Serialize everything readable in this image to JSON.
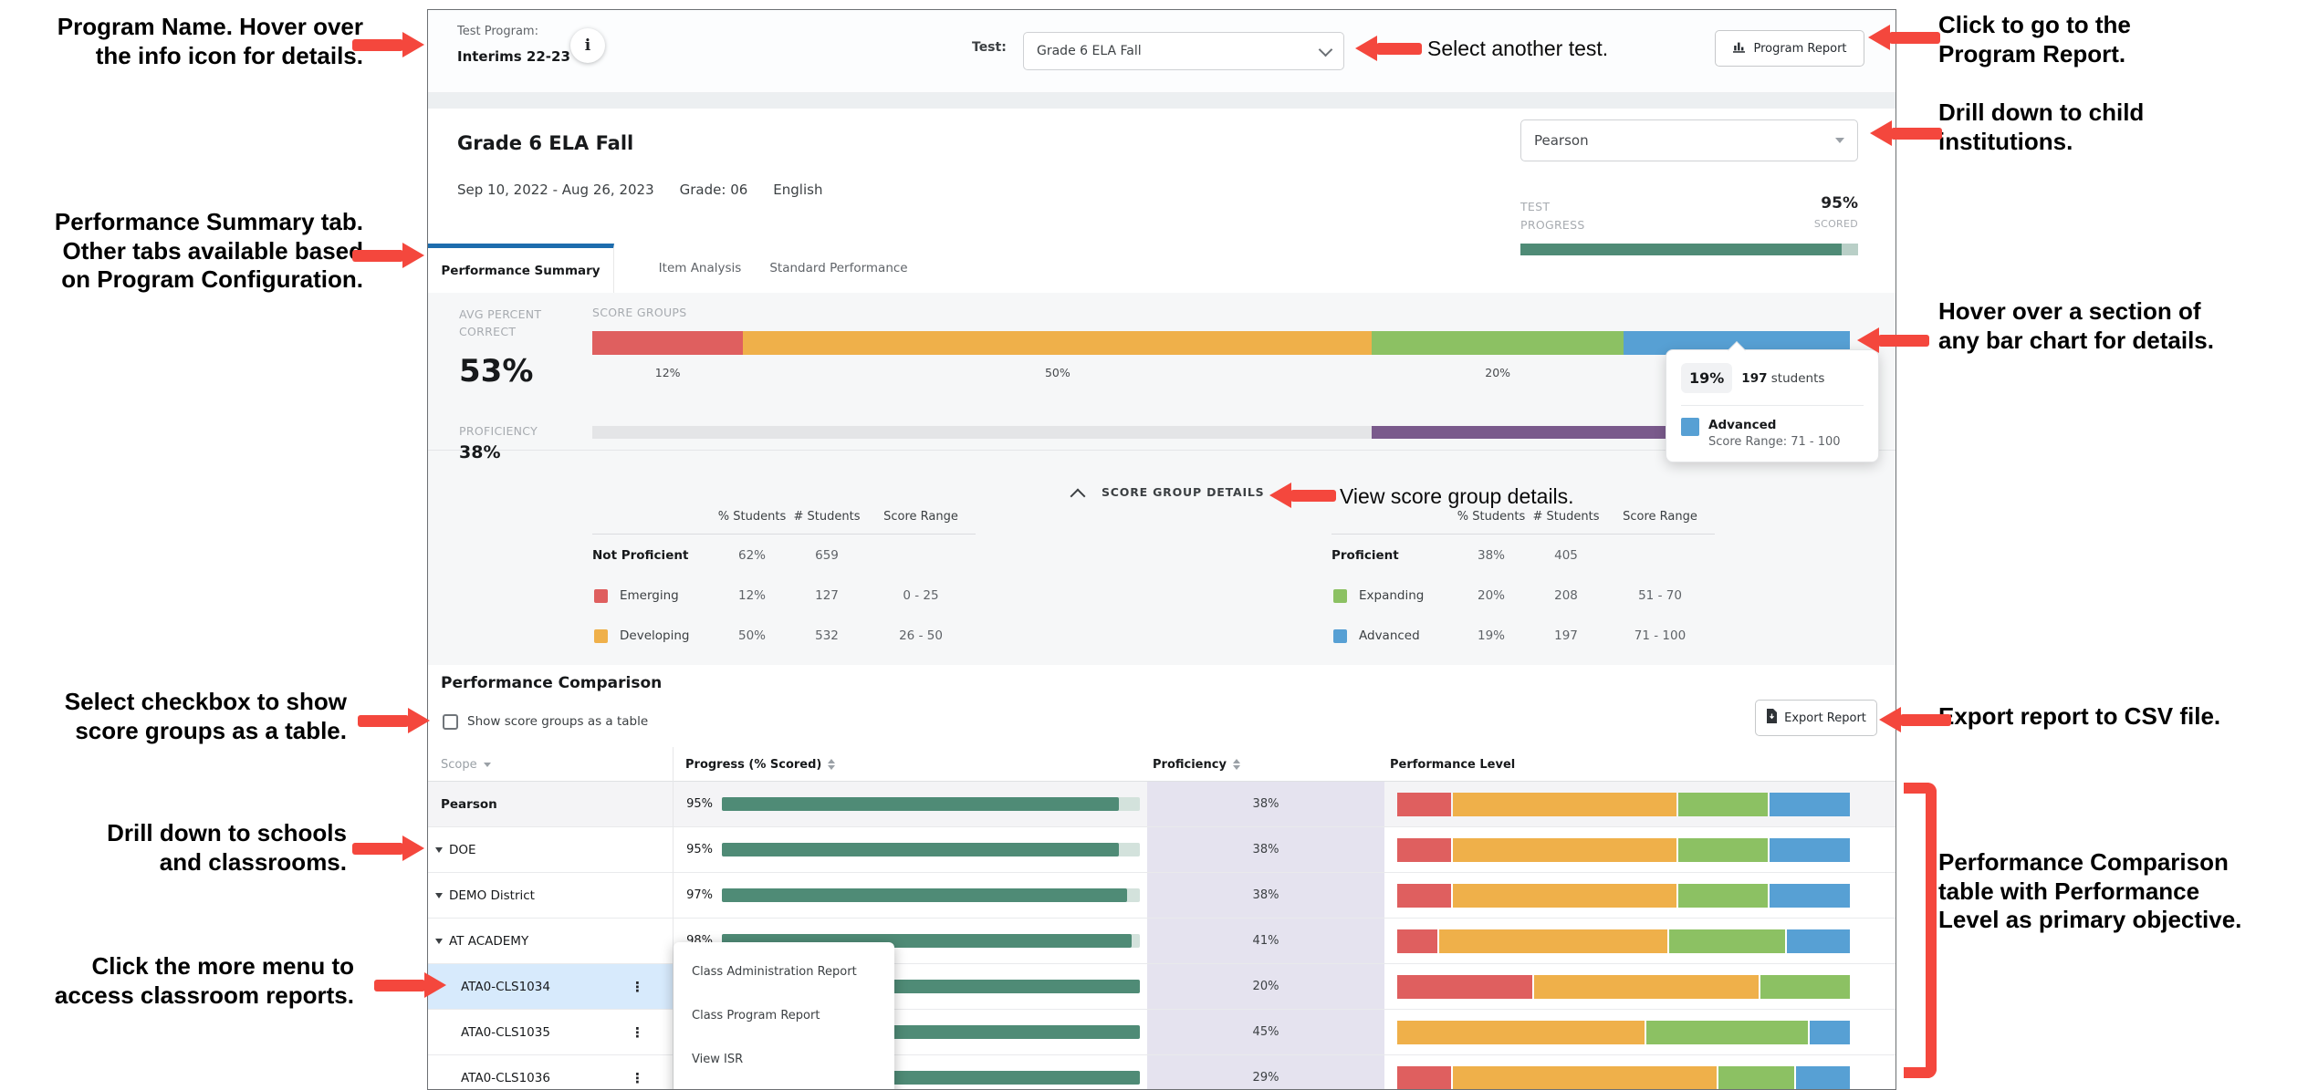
{
  "top_bar": {
    "test_program_label": "Test Program:",
    "test_program_name": "Interims 22-23",
    "info_glyph": "i",
    "test_label": "Test:",
    "test_selected": "Grade 6 ELA Fall",
    "program_report_label": "Program Report"
  },
  "header": {
    "title": "Grade 6 ELA Fall",
    "date_range": "Sep 10, 2022 - Aug 26, 2023",
    "grade": "Grade: 06",
    "language": "English",
    "institution_selected": "Pearson",
    "test_progress_label": "TEST PROGRESS",
    "scored_value": "95%",
    "scored_label": "SCORED",
    "progress_percent": 95
  },
  "tabs": [
    {
      "label": "Performance Summary",
      "active": true
    },
    {
      "label": "Item Analysis",
      "active": false
    },
    {
      "label": "Standard Performance",
      "active": false
    }
  ],
  "summary": {
    "avg_percent_correct_label": "AVG PERCENT CORRECT",
    "avg_percent_correct": "53%",
    "proficiency_label": "PROFICIENCY",
    "proficiency": "38%",
    "score_groups_label": "SCORE GROUPS"
  },
  "score_groups_bar": {
    "segments": [
      {
        "name": "Emerging",
        "value": 12,
        "pct_label": "12%",
        "color": "emerging",
        "show_label": true
      },
      {
        "name": "Developing",
        "value": 50,
        "pct_label": "50%",
        "color": "developing",
        "show_label": true
      },
      {
        "name": "Expanding",
        "value": 20,
        "pct_label": "20%",
        "color": "expanding",
        "show_label": true
      },
      {
        "name": "Advanced",
        "value": 18,
        "pct_label": "19%",
        "color": "advanced",
        "show_label": false
      }
    ]
  },
  "proficiency_band": {
    "not_proficient": 62,
    "proficient": 38
  },
  "tooltip": {
    "percent": "19%",
    "count": "197",
    "count_suffix": " students",
    "group": "Advanced",
    "score_range": "Score Range: 71 - 100"
  },
  "score_group_details": {
    "toggle_label": "SCORE GROUP DETAILS",
    "columns": [
      "% Students",
      "# Students",
      "Score Range"
    ],
    "left_table": {
      "header_row": {
        "name": "Not Proficient",
        "pct": "62%",
        "count": "659",
        "range": ""
      },
      "rows": [
        {
          "name": "Emerging",
          "color": "emerging",
          "pct": "12%",
          "count": "127",
          "range": "0 - 25"
        },
        {
          "name": "Developing",
          "color": "developing",
          "pct": "50%",
          "count": "532",
          "range": "26 - 50"
        }
      ]
    },
    "right_table": {
      "header_row": {
        "name": "Proficient",
        "pct": "38%",
        "count": "405",
        "range": ""
      },
      "rows": [
        {
          "name": "Expanding",
          "color": "expanding",
          "pct": "20%",
          "count": "208",
          "range": "51 - 70"
        },
        {
          "name": "Advanced",
          "color": "advanced",
          "pct": "19%",
          "count": "197",
          "range": "71 - 100"
        }
      ]
    }
  },
  "comparison": {
    "title": "Performance Comparison",
    "checkbox_label": "Show score groups as a table",
    "checkbox_checked": false,
    "export_label": "Export Report",
    "columns": {
      "scope": "Scope",
      "progress": "Progress (% Scored)",
      "proficiency": "Proficiency",
      "performance_level": "Performance Level"
    },
    "rows": [
      {
        "scope": "Pearson",
        "bold": true,
        "caret": false,
        "kebab": false,
        "highlight": false,
        "shaded": true,
        "indent": false,
        "progress_label": "95%",
        "progress": 95,
        "proficiency": "38%",
        "performance": [
          12,
          50,
          20,
          18
        ]
      },
      {
        "scope": "DOE",
        "bold": false,
        "caret": true,
        "kebab": false,
        "highlight": false,
        "shaded": false,
        "indent": false,
        "progress_label": "95%",
        "progress": 95,
        "proficiency": "38%",
        "performance": [
          12,
          50,
          20,
          18
        ]
      },
      {
        "scope": "DEMO District",
        "bold": false,
        "caret": true,
        "kebab": false,
        "highlight": false,
        "shaded": false,
        "indent": false,
        "progress_label": "97%",
        "progress": 97,
        "proficiency": "38%",
        "performance": [
          12,
          50,
          20,
          18
        ]
      },
      {
        "scope": "AT ACADEMY",
        "bold": false,
        "caret": true,
        "kebab": false,
        "highlight": false,
        "shaded": false,
        "indent": false,
        "progress_label": "98%",
        "progress": 98,
        "proficiency": "41%",
        "performance": [
          9,
          51,
          26,
          14
        ]
      },
      {
        "scope": "ATA0-CLS1034",
        "bold": false,
        "caret": false,
        "kebab": true,
        "highlight": true,
        "shaded": false,
        "indent": true,
        "progress_label": "",
        "progress": 100,
        "proficiency": "20%",
        "performance": [
          30,
          50,
          20,
          0
        ]
      },
      {
        "scope": "ATA0-CLS1035",
        "bold": false,
        "caret": false,
        "kebab": true,
        "highlight": false,
        "shaded": false,
        "indent": true,
        "progress_label": "",
        "progress": 100,
        "proficiency": "45%",
        "performance": [
          0,
          55,
          36,
          9
        ]
      },
      {
        "scope": "ATA0-CLS1036",
        "bold": false,
        "caret": false,
        "kebab": true,
        "highlight": false,
        "shaded": false,
        "indent": true,
        "progress_label": "",
        "progress": 100,
        "proficiency": "29%",
        "performance": [
          12,
          59,
          17,
          12
        ]
      }
    ],
    "context_menu": [
      "Class Administration Report",
      "Class Program Report",
      "View ISR"
    ]
  },
  "annotations": {
    "left": [
      "Program Name. Hover over\nthe info icon for details.",
      "Performance Summary tab.\nOther tabs available based\non Program Configuration.",
      "Select checkbox to show\nscore groups as a table.",
      "Drill down to schools\nand classrooms.",
      "Click the more menu to\naccess classroom reports."
    ],
    "right": [
      "Click to go to the\nProgram Report.",
      "Drill down to child\ninstitutions.",
      "Hover over a section of\nany bar chart for details.",
      "Export report to CSV file."
    ],
    "inline": [
      "Select another test.",
      "View score group details."
    ],
    "bracket": "Performance Comparison\ntable with Performance\nLevel as primary objective."
  },
  "colors": {
    "emerging": "#df5f5f",
    "developing": "#efb04a",
    "expanding": "#8cc163",
    "advanced": "#57a0d4",
    "proficient_band": "#7a5a8c",
    "not_proficient_band": "#e4e5e7",
    "progress_fill": "#4f8b76",
    "tab_accent": "#1d6cad",
    "annotation_red": "#f4473d",
    "proficiency_col_bg": "#e5e3ef",
    "row_highlight": "#d7eafc"
  }
}
